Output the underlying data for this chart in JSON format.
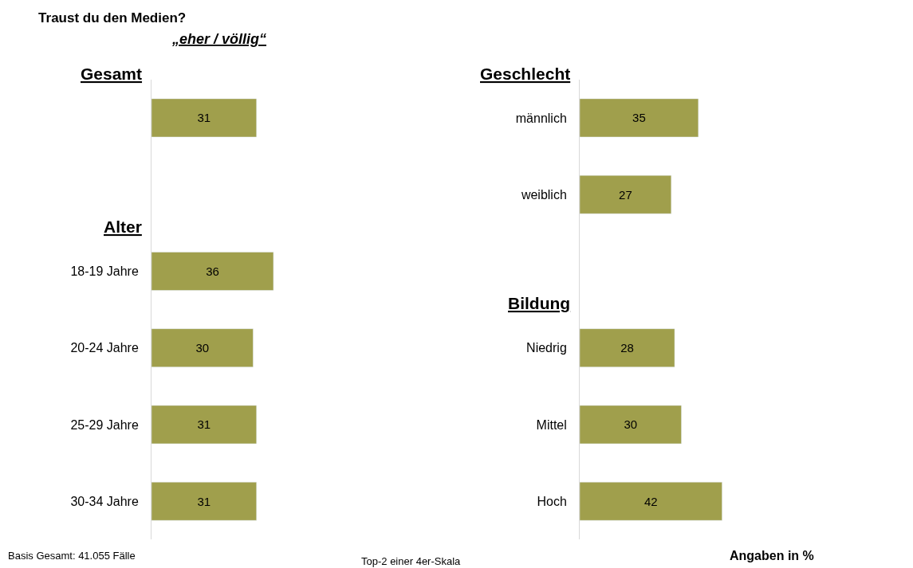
{
  "chart_data": [
    {
      "type": "bar",
      "orientation": "horizontal",
      "title": "Traust du den Medien?",
      "subtitle": "„eher / völlig“",
      "categories": [
        null,
        null,
        "18-19 Jahre",
        "20-24 Jahre",
        "25-29 Jahre",
        "30-34 Jahre"
      ],
      "values": [
        31,
        null,
        36,
        30,
        31,
        31
      ],
      "color": "#a09f4c",
      "data_labels": true,
      "tick_labels": "y",
      "annotations": [
        "Gesamt",
        "Alter",
        "Basis Gesamt: 41.055 Fälle",
        "Top-2 einer 4er-Skala"
      ]
    },
    {
      "type": "bar",
      "orientation": "horizontal",
      "categories": [
        "männlich",
        "weiblich",
        null,
        "Niedrig",
        "Mittel",
        "Hoch"
      ],
      "values": [
        35,
        27,
        null,
        28,
        30,
        42
      ],
      "color": "#a09f4c",
      "data_labels": true,
      "tick_labels": "y",
      "annotations": [
        "Geschlecht",
        "Bildung",
        "Angaben in %"
      ]
    }
  ]
}
